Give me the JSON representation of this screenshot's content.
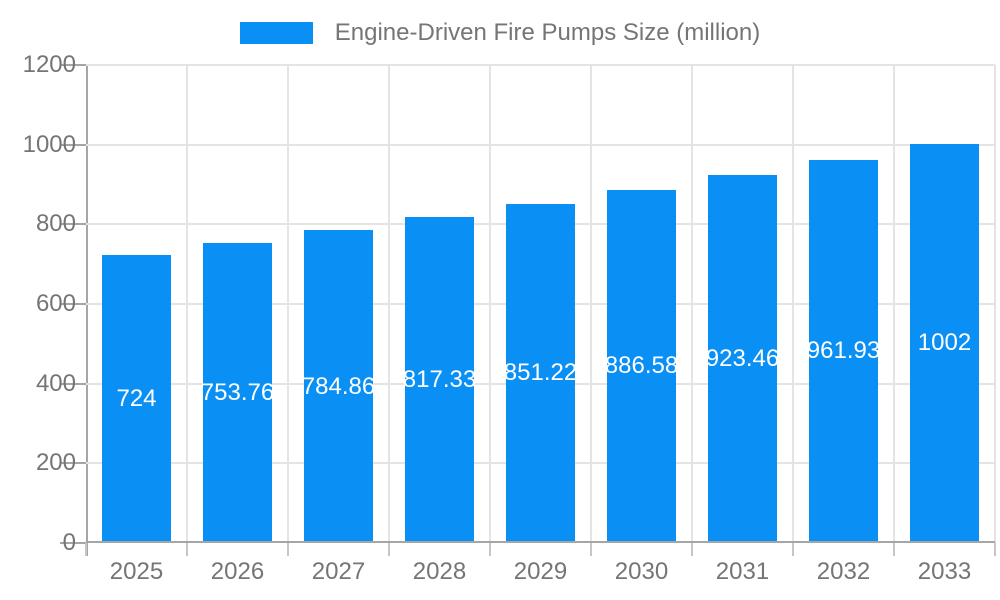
{
  "chart_data": {
    "type": "bar",
    "title": "Engine-Driven Fire Pumps Size (million)",
    "categories": [
      "2025",
      "2026",
      "2027",
      "2028",
      "2029",
      "2030",
      "2031",
      "2032",
      "2033"
    ],
    "values": [
      724,
      753.76,
      784.86,
      817.33,
      851.22,
      886.58,
      923.46,
      961.93,
      1002
    ],
    "value_labels": [
      "724",
      "753.76",
      "784.86",
      "817.33",
      "851.22",
      "886.58",
      "923.46",
      "961.93",
      "1002"
    ],
    "xlabel": "",
    "ylabel": "",
    "ylim": [
      0,
      1200
    ],
    "yticks": [
      0,
      200,
      400,
      600,
      800,
      1000,
      1200
    ],
    "grid": true,
    "legend_position": "top-center",
    "colors": {
      "bar": "#0a8ff5",
      "value_label_text": "#ffffff",
      "axis_text": "#757575",
      "legend_text": "#757575",
      "gridline": "#e4e4e4",
      "axis_line": "#a5a5a5",
      "background": "#ffffff"
    }
  }
}
